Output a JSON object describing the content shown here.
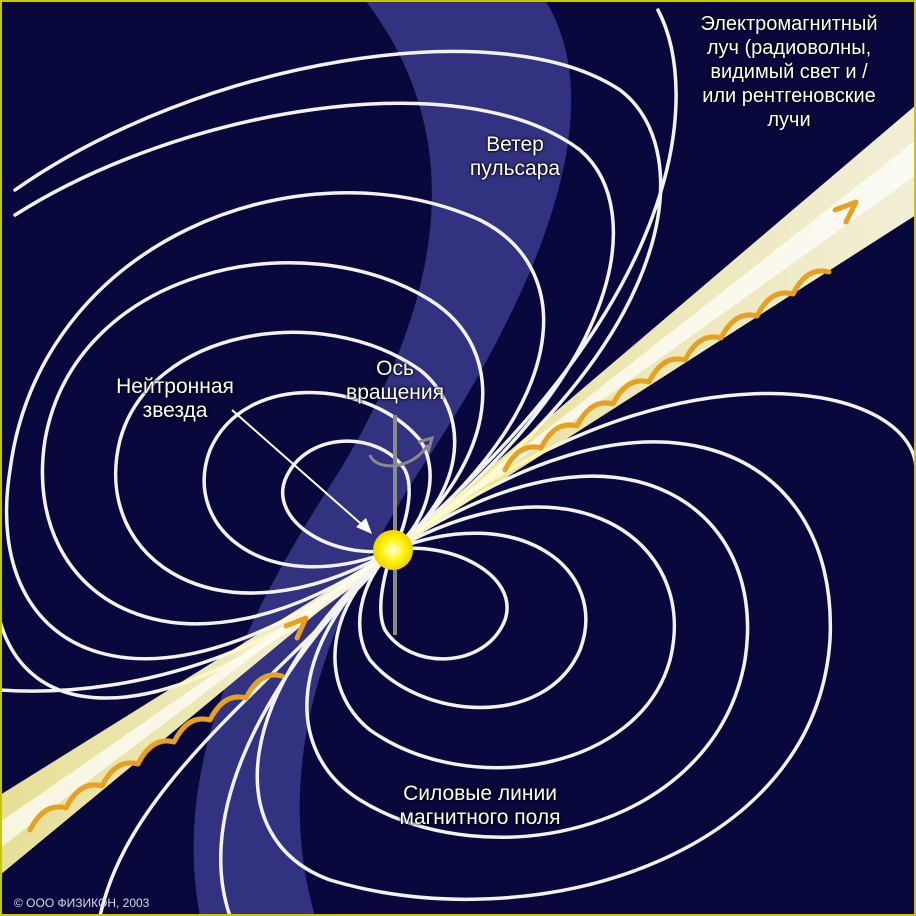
{
  "diagram": {
    "colors": {
      "background": "#08083c",
      "wind_band": "#3a3a8c",
      "field_lines": "#f2f2f2",
      "beam": "#fff7a0",
      "beam_core": "#ffffff",
      "wave_arrows": "#e8a020",
      "star": "#fff200",
      "axis": "#8a8a8a",
      "frame": "#c8c800"
    },
    "labels": {
      "beam": [
        "Электромагнитный",
        "луч (радиоволны,",
        "видимый свет и /",
        "или рентгеновские",
        "лучи"
      ],
      "wind": [
        "Ветер",
        "пульсара"
      ],
      "star": [
        "Нейтронная",
        "звезда"
      ],
      "axis": [
        "Ось",
        "вращения"
      ],
      "field": [
        "Силовые линии",
        "магнитного поля"
      ]
    },
    "copyright": "© ООО ФИЗИКОН, 2003"
  }
}
